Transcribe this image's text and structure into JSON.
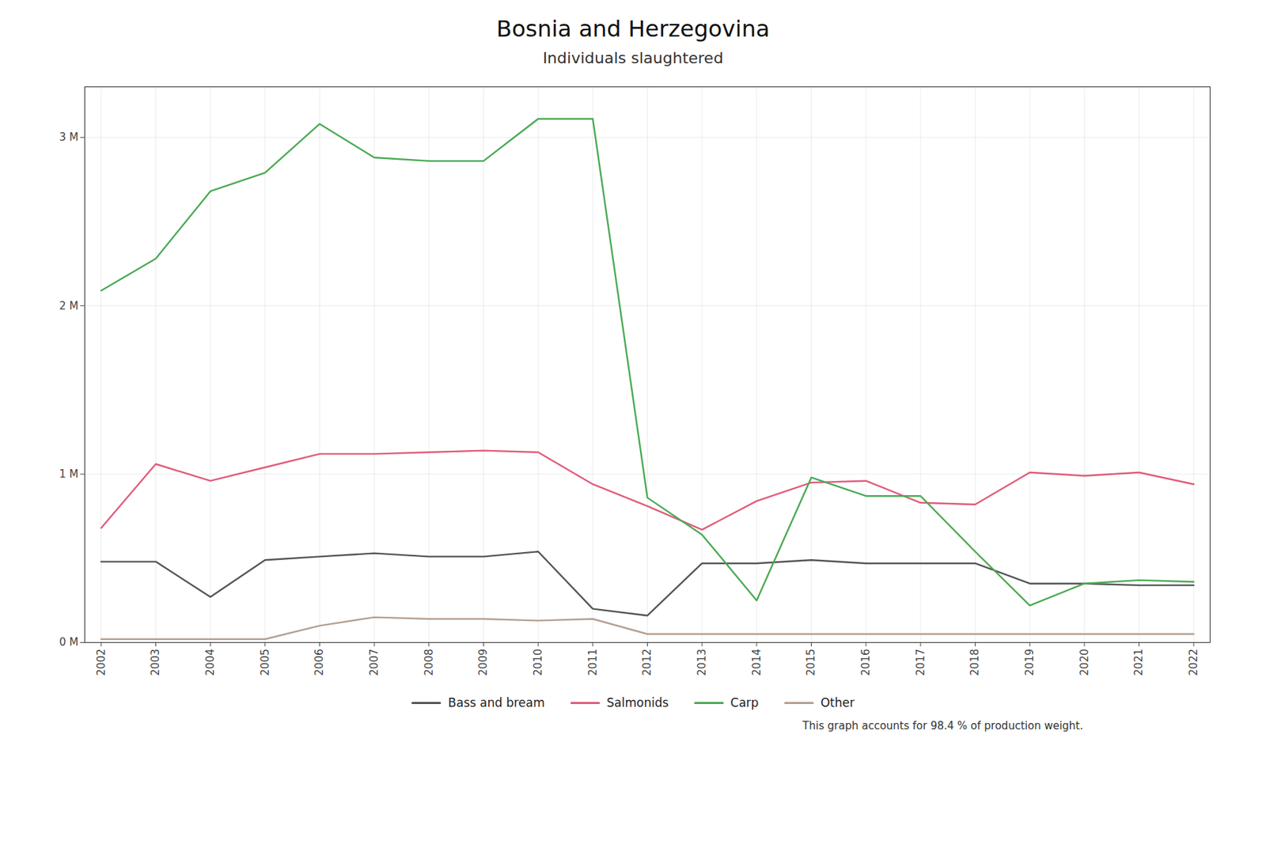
{
  "chart_data": {
    "type": "line",
    "title": "Bosnia and Herzegovina",
    "subtitle": "Individuals slaughtered",
    "footnote": "This graph accounts for 98.4 % of production weight.",
    "x": [
      2002,
      2003,
      2004,
      2005,
      2006,
      2007,
      2008,
      2009,
      2010,
      2011,
      2012,
      2013,
      2014,
      2015,
      2016,
      2017,
      2018,
      2019,
      2020,
      2021,
      2022
    ],
    "series": [
      {
        "name": "Bass and bream",
        "color": "#555555",
        "values": [
          480000,
          480000,
          270000,
          490000,
          510000,
          530000,
          510000,
          510000,
          540000,
          200000,
          160000,
          470000,
          470000,
          490000,
          470000,
          470000,
          470000,
          350000,
          350000,
          340000,
          340000
        ]
      },
      {
        "name": "Salmonids",
        "color": "#e05c7a",
        "values": [
          680000,
          1060000,
          960000,
          1040000,
          1120000,
          1120000,
          1130000,
          1140000,
          1130000,
          940000,
          810000,
          670000,
          840000,
          950000,
          960000,
          830000,
          820000,
          1010000,
          990000,
          1010000,
          940000
        ]
      },
      {
        "name": "Carp",
        "color": "#4aaa55",
        "values": [
          2090000,
          2280000,
          2680000,
          2790000,
          3080000,
          2880000,
          2860000,
          2860000,
          3110000,
          3110000,
          860000,
          640000,
          250000,
          980000,
          870000,
          870000,
          540000,
          220000,
          350000,
          370000,
          360000
        ]
      },
      {
        "name": "Other",
        "color": "#b5a090",
        "values": [
          20000,
          20000,
          20000,
          20000,
          100000,
          150000,
          140000,
          140000,
          130000,
          140000,
          50000,
          50000,
          50000,
          50000,
          50000,
          50000,
          50000,
          50000,
          50000,
          50000,
          50000
        ]
      }
    ],
    "xlim": [
      2001.7,
      2022.3
    ],
    "xticks": [
      2002,
      2003,
      2004,
      2005,
      2006,
      2007,
      2008,
      2009,
      2010,
      2011,
      2012,
      2013,
      2014,
      2015,
      2016,
      2017,
      2018,
      2019,
      2020,
      2021,
      2022
    ],
    "ylim": [
      0,
      3300000
    ],
    "yticks": [
      {
        "value": 0,
        "label": "0 M"
      },
      {
        "value": 1000000,
        "label": "1 M"
      },
      {
        "value": 2000000,
        "label": "2 M"
      },
      {
        "value": 3000000,
        "label": "3 M"
      }
    ],
    "grid": true,
    "legend": "bottom"
  }
}
